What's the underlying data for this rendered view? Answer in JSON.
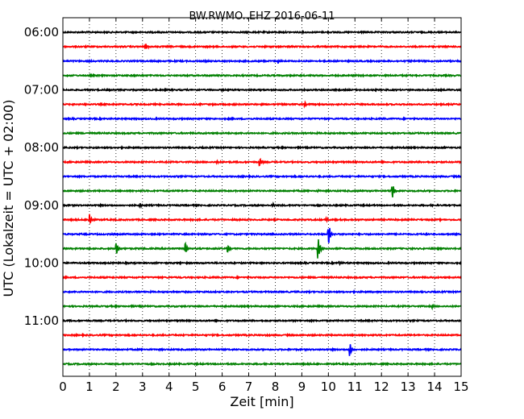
{
  "chart_data": {
    "type": "line",
    "title": "BW.RWMO..EHZ 2016-06-11",
    "xlabel": "Zeit  [min]",
    "ylabel": "UTC (Lokalzeit = UTC + 02:00)",
    "xlim": [
      0,
      15
    ],
    "x_ticks": [
      "0",
      "1",
      "2",
      "3",
      "4",
      "5",
      "6",
      "7",
      "8",
      "9",
      "10",
      "11",
      "12",
      "13",
      "14",
      "15"
    ],
    "y_tick_labels": [
      "06:00",
      "07:00",
      "08:00",
      "09:00",
      "10:00",
      "11:00"
    ],
    "grid": "vertical dotted",
    "line_colors": [
      "#000000",
      "#ff0000",
      "#0000ff",
      "#008000"
    ],
    "series": [
      {
        "start": "06:00",
        "events": []
      },
      {
        "start": "06:15",
        "events": [
          {
            "t": 3.1,
            "amp": 0.08
          }
        ]
      },
      {
        "start": "06:30",
        "events": [
          {
            "t": 8.1,
            "amp": 0.05
          }
        ]
      },
      {
        "start": "06:45",
        "events": []
      },
      {
        "start": "07:00",
        "events": []
      },
      {
        "start": "07:15",
        "events": [
          {
            "t": 9.1,
            "amp": 0.06
          }
        ]
      },
      {
        "start": "07:30",
        "events": []
      },
      {
        "start": "07:45",
        "events": []
      },
      {
        "start": "08:00",
        "events": []
      },
      {
        "start": "08:15",
        "events": [
          {
            "t": 5.8,
            "amp": 0.05
          },
          {
            "t": 7.4,
            "amp": 0.12
          }
        ]
      },
      {
        "start": "08:30",
        "events": []
      },
      {
        "start": "08:45",
        "events": [
          {
            "t": 9.6,
            "amp": 0.05
          },
          {
            "t": 12.4,
            "amp": 0.2
          }
        ]
      },
      {
        "start": "09:00",
        "events": [
          {
            "t": 2.9,
            "amp": 0.05
          },
          {
            "t": 7.9,
            "amp": 0.05
          }
        ]
      },
      {
        "start": "09:15",
        "events": [
          {
            "t": 1.0,
            "amp": 0.14
          },
          {
            "t": 9.9,
            "amp": 0.05
          }
        ]
      },
      {
        "start": "09:30",
        "events": [
          {
            "t": 10.0,
            "amp": 0.3
          }
        ]
      },
      {
        "start": "09:45",
        "events": [
          {
            "t": 2.0,
            "amp": 0.2
          },
          {
            "t": 4.6,
            "amp": 0.15
          },
          {
            "t": 6.2,
            "amp": 0.12
          },
          {
            "t": 9.6,
            "amp": 0.3
          }
        ]
      },
      {
        "start": "10:00",
        "events": [
          {
            "t": 10.4,
            "amp": 0.04
          }
        ]
      },
      {
        "start": "10:15",
        "events": []
      },
      {
        "start": "10:30",
        "events": []
      },
      {
        "start": "10:45",
        "events": [
          {
            "t": 13.9,
            "amp": 0.04
          }
        ]
      },
      {
        "start": "11:00",
        "events": []
      },
      {
        "start": "11:15",
        "events": []
      },
      {
        "start": "11:30",
        "events": [
          {
            "t": 10.8,
            "amp": 0.2
          }
        ]
      },
      {
        "start": "11:45",
        "events": []
      }
    ]
  }
}
